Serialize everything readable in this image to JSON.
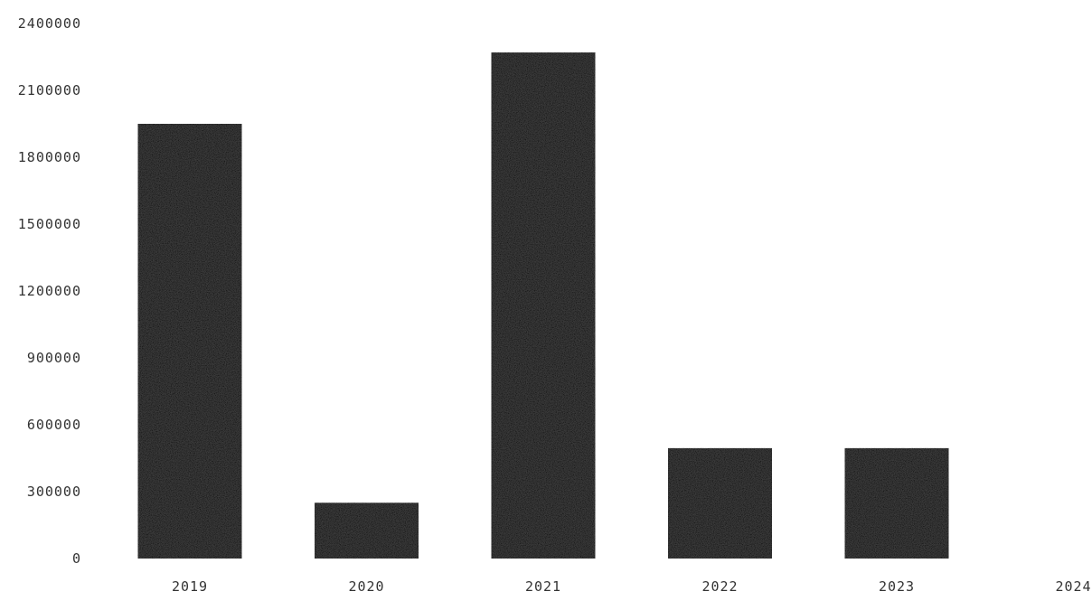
{
  "chart_data": {
    "type": "bar",
    "title": "",
    "xlabel": "",
    "ylabel": "",
    "categories": [
      "2019",
      "2020",
      "2021",
      "2022",
      "2023",
      "2024"
    ],
    "values": [
      1950000,
      250000,
      2270000,
      495000,
      495000,
      0
    ],
    "ylim": [
      0,
      2400000
    ],
    "yticks": [
      0,
      300000,
      600000,
      900000,
      1200000,
      1500000,
      1800000,
      2100000,
      2400000
    ],
    "ytick_labels": [
      "0",
      "300000",
      "600000",
      "900000",
      "1200000",
      "1500000",
      "1800000",
      "2100000",
      "2400000"
    ],
    "grid": false,
    "legend": "none",
    "bar_fill": "stippled grey",
    "colors": {
      "bar_dark": "#3a3a3a",
      "bar_light": "#e8e8e8",
      "text": "#333333",
      "background": "#ffffff"
    }
  }
}
